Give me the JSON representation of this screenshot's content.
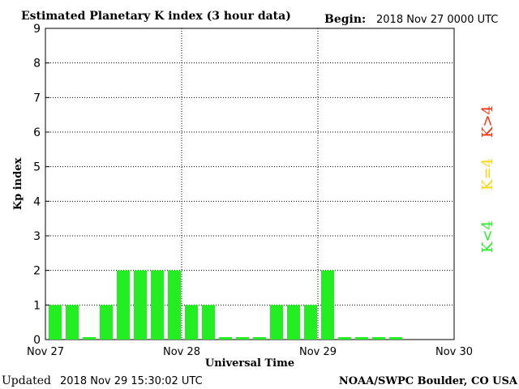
{
  "header": {
    "title": "Estimated Planetary K index (3 hour data)",
    "begin_label": "Begin:",
    "begin_value": "2018 Nov 27 0000 UTC"
  },
  "footer": {
    "updated_label": "Updated",
    "updated_value": "2018 Nov 29 15:30:02 UTC",
    "source": "NOAA/SWPC Boulder, CO USA"
  },
  "legend": {
    "items": [
      {
        "label": "K>4",
        "color": "#ff2a00"
      },
      {
        "label": "K=4",
        "color": "#ffd700"
      },
      {
        "label": "K<4",
        "color": "#22ee22"
      }
    ]
  },
  "chart_data": {
    "type": "bar",
    "title": "Estimated Planetary K index (3 hour data)",
    "xlabel": "Universal Time",
    "ylabel": "Kp index",
    "ylim": [
      0,
      9
    ],
    "yticks": [
      0,
      1,
      2,
      3,
      4,
      5,
      6,
      7,
      8,
      9
    ],
    "xtick_labels": [
      "Nov 27",
      "Nov 28",
      "Nov 29",
      "Nov 30"
    ],
    "grid": true,
    "bar_color": "#22ee22",
    "values": [
      1,
      1,
      0,
      1,
      2,
      2,
      2,
      2,
      1,
      1,
      0,
      0,
      0,
      1,
      1,
      1,
      2,
      0,
      0,
      0,
      0
    ]
  }
}
